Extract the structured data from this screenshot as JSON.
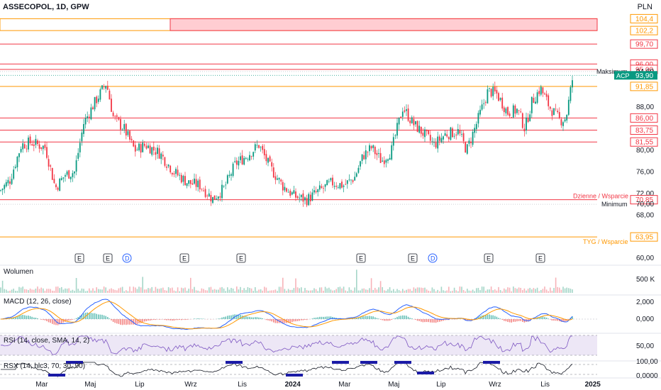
{
  "header": {
    "symbol": "ASSECOPOL, 1D, GPW",
    "currency": "PLN"
  },
  "colors": {
    "up": "#089981",
    "down": "#f23645",
    "resistance": "#f23645",
    "support_orange": "#ff9800",
    "zone_fill": "#ffcdd2",
    "macd_line": "#2962ff",
    "signal_line": "#ff9800",
    "rsi_line": "#7e57c2",
    "rsi_band": "#ede7f6",
    "rsx_line": "#131722",
    "rsx_marker": "#1a1aa6",
    "price_tag": "#089981"
  },
  "chart_data": [
    {
      "type": "candlestick",
      "title": "ASSECOPOL, 1D, GPW",
      "x_ticks": [
        "Mar",
        "Maj",
        "Lip",
        "Wrz",
        "Lis",
        "2024",
        "Mar",
        "Maj",
        "Lip",
        "Wrz",
        "Lis",
        "2025"
      ],
      "y_ticks": [
        60.0,
        68.0,
        72.0,
        76.0,
        80.0,
        88.0
      ],
      "ylim": [
        59.5,
        105.5
      ],
      "last_price": 93.9,
      "last_price_label": "ACP",
      "price_path": [
        [
          0,
          72.5
        ],
        [
          14,
          74.5
        ],
        [
          30,
          81.0
        ],
        [
          44,
          81.5
        ],
        [
          64,
          80.5
        ],
        [
          78,
          73.0
        ],
        [
          92,
          75.5
        ],
        [
          105,
          76.0
        ],
        [
          118,
          85.0
        ],
        [
          132,
          88.5
        ],
        [
          150,
          92.5
        ],
        [
          160,
          86.0
        ],
        [
          175,
          84.0
        ],
        [
          190,
          80.0
        ],
        [
          205,
          81.0
        ],
        [
          225,
          79.5
        ],
        [
          245,
          76.0
        ],
        [
          265,
          74.0
        ],
        [
          282,
          73.5
        ],
        [
          300,
          71.0
        ],
        [
          316,
          73.0
        ],
        [
          332,
          77.5
        ],
        [
          348,
          79.0
        ],
        [
          365,
          81.0
        ],
        [
          380,
          77.0
        ],
        [
          398,
          73.5
        ],
        [
          415,
          71.5
        ],
        [
          432,
          70.8
        ],
        [
          450,
          72.5
        ],
        [
          468,
          74.0
        ],
        [
          485,
          73.5
        ],
        [
          500,
          75.0
        ],
        [
          512,
          79.0
        ],
        [
          524,
          80.5
        ],
        [
          538,
          78.0
        ],
        [
          552,
          80.0
        ],
        [
          568,
          88.0
        ],
        [
          582,
          85.0
        ],
        [
          598,
          83.0
        ],
        [
          612,
          81.0
        ],
        [
          628,
          83.0
        ],
        [
          646,
          83.5
        ],
        [
          658,
          80.0
        ],
        [
          672,
          85.0
        ],
        [
          688,
          91.0
        ],
        [
          700,
          90.5
        ],
        [
          716,
          87.0
        ],
        [
          730,
          87.5
        ],
        [
          740,
          84.0
        ],
        [
          750,
          89.0
        ],
        [
          762,
          91.5
        ],
        [
          775,
          88.0
        ],
        [
          790,
          85.5
        ],
        [
          798,
          86.0
        ],
        [
          808,
          93.9
        ]
      ],
      "volume_label": "Wolumen",
      "volume_ticks": [
        "500 K"
      ]
    },
    {
      "type": "line",
      "title": "MACD (12, 26, close)",
      "series": [
        {
          "name": "MACD",
          "color": "#2962ff"
        },
        {
          "name": "Signal",
          "color": "#ff9800"
        }
      ],
      "y_ticks": [
        "2,000",
        "0,000"
      ]
    },
    {
      "type": "line",
      "title": "RSI (14, close, SMA, 14, 2)",
      "y_ticks": [
        "50,00"
      ]
    },
    {
      "type": "line",
      "title": "RSX (14, hlc3, 70, 30, 90)",
      "y_ticks": [
        "100,00",
        "0,0000"
      ]
    }
  ],
  "levels": [
    {
      "price": 104.4,
      "label": "104,4",
      "color": "#ff9800"
    },
    {
      "price": 102.2,
      "label": "102,2",
      "color": "#ff9800"
    },
    {
      "price": 99.7,
      "label": "99,70",
      "color": "#f23645"
    },
    {
      "price": 96.0,
      "label": "96,00",
      "color": "#f23645"
    },
    {
      "price": 95.0,
      "label": "95,00",
      "color": "#f23645"
    },
    {
      "price": 94.6,
      "label": "94,60",
      "color": "#131722"
    },
    {
      "price": 91.85,
      "label": "91,85",
      "color": "#ff9800"
    },
    {
      "price": 86.0,
      "label": "86,00",
      "color": "#f23645"
    },
    {
      "price": 83.75,
      "label": "83,75",
      "color": "#f23645"
    },
    {
      "price": 81.55,
      "label": "81,55",
      "color": "#f23645"
    },
    {
      "price": 70.85,
      "label": "70,85",
      "color": "#f23645"
    },
    {
      "price": 70.0,
      "label": "70,00",
      "color": "#131722"
    },
    {
      "price": 63.95,
      "label": "63,95",
      "color": "#ff9800"
    }
  ],
  "annotations": {
    "maximum": "Maksimum",
    "minimum": "Minimum",
    "daily": "Dzienne / Wsparcie",
    "weekly": "TYG / Wsparcie"
  },
  "events": [
    {
      "x": 112,
      "label": "E"
    },
    {
      "x": 152,
      "label": "E"
    },
    {
      "x": 179,
      "label": "D"
    },
    {
      "x": 260,
      "label": "E"
    },
    {
      "x": 340,
      "label": "E"
    },
    {
      "x": 509,
      "label": "E"
    },
    {
      "x": 582,
      "label": "E"
    },
    {
      "x": 610,
      "label": "D"
    },
    {
      "x": 689,
      "label": "E"
    },
    {
      "x": 762,
      "label": "E"
    }
  ]
}
